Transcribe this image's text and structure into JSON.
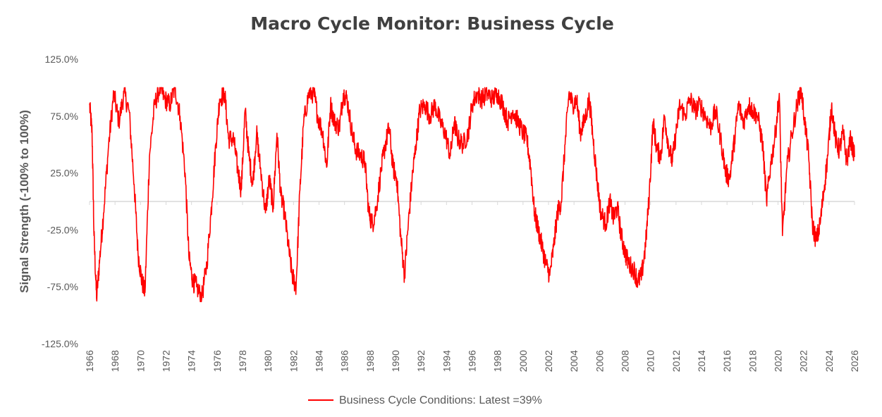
{
  "chart_data": {
    "type": "line",
    "title": "Macro Cycle Monitor: Business Cycle",
    "ylabel": "Signal Strength (-100% to 100%)",
    "xlabel": "",
    "ylim": [
      -125,
      125
    ],
    "xlim": [
      1966,
      2026
    ],
    "y_ticks": [
      "125.0%",
      "75.0%",
      "25.0%",
      "-25.0%",
      "-75.0%",
      "-125.0%"
    ],
    "y_tick_values": [
      125,
      75,
      25,
      -25,
      -75,
      -125
    ],
    "x_ticks": [
      "1966",
      "1968",
      "1970",
      "1972",
      "1974",
      "1976",
      "1978",
      "1980",
      "1982",
      "1984",
      "1986",
      "1988",
      "1990",
      "1992",
      "1994",
      "1996",
      "1998",
      "2000",
      "2002",
      "2004",
      "2006",
      "2008",
      "2010",
      "2012",
      "2014",
      "2016",
      "2018",
      "2020",
      "2022",
      "2024",
      "2026"
    ],
    "x_tick_values": [
      1966,
      1968,
      1970,
      1972,
      1974,
      1976,
      1978,
      1980,
      1982,
      1984,
      1986,
      1988,
      1990,
      1992,
      1994,
      1996,
      1998,
      2000,
      2002,
      2004,
      2006,
      2008,
      2010,
      2012,
      2014,
      2016,
      2018,
      2020,
      2022,
      2024,
      2026
    ],
    "zero_line": true,
    "legend_position": "bottom",
    "series": [
      {
        "name": "Business Cycle Conditions: Latest =39%",
        "color": "#ff0000",
        "anchors": [
          [
            1966.0,
            85
          ],
          [
            1966.2,
            60
          ],
          [
            1966.35,
            -30
          ],
          [
            1966.55,
            -85
          ],
          [
            1966.8,
            -50
          ],
          [
            1967.1,
            -10
          ],
          [
            1967.5,
            50
          ],
          [
            1967.9,
            95
          ],
          [
            1968.3,
            70
          ],
          [
            1968.7,
            95
          ],
          [
            1969.1,
            80
          ],
          [
            1969.5,
            15
          ],
          [
            1969.8,
            -45
          ],
          [
            1970.1,
            -70
          ],
          [
            1970.35,
            -80
          ],
          [
            1970.7,
            40
          ],
          [
            1971.1,
            85
          ],
          [
            1971.5,
            100
          ],
          [
            1971.9,
            90
          ],
          [
            1972.3,
            85
          ],
          [
            1972.7,
            100
          ],
          [
            1973.1,
            75
          ],
          [
            1973.5,
            25
          ],
          [
            1973.8,
            -50
          ],
          [
            1974.1,
            -70
          ],
          [
            1974.4,
            -75
          ],
          [
            1974.8,
            -85
          ],
          [
            1975.2,
            -55
          ],
          [
            1975.6,
            0
          ],
          [
            1975.9,
            50
          ],
          [
            1976.2,
            90
          ],
          [
            1976.6,
            95
          ],
          [
            1976.9,
            55
          ],
          [
            1977.3,
            55
          ],
          [
            1977.6,
            30
          ],
          [
            1977.9,
            10
          ],
          [
            1978.2,
            80
          ],
          [
            1978.5,
            40
          ],
          [
            1978.8,
            15
          ],
          [
            1979.1,
            60
          ],
          [
            1979.4,
            30
          ],
          [
            1979.8,
            -10
          ],
          [
            1980.1,
            20
          ],
          [
            1980.4,
            -5
          ],
          [
            1980.7,
            60
          ],
          [
            1981.0,
            5
          ],
          [
            1981.3,
            -10
          ],
          [
            1981.6,
            -40
          ],
          [
            1981.9,
            -65
          ],
          [
            1982.2,
            -75
          ],
          [
            1982.5,
            10
          ],
          [
            1982.8,
            70
          ],
          [
            1983.2,
            95
          ],
          [
            1983.6,
            95
          ],
          [
            1983.9,
            75
          ],
          [
            1984.3,
            60
          ],
          [
            1984.6,
            30
          ],
          [
            1984.9,
            85
          ],
          [
            1985.2,
            70
          ],
          [
            1985.6,
            65
          ],
          [
            1985.9,
            95
          ],
          [
            1986.2,
            90
          ],
          [
            1986.6,
            60
          ],
          [
            1986.9,
            45
          ],
          [
            1987.3,
            40
          ],
          [
            1987.6,
            35
          ],
          [
            1987.9,
            -10
          ],
          [
            1988.2,
            -20
          ],
          [
            1988.5,
            -5
          ],
          [
            1988.9,
            30
          ],
          [
            1989.2,
            50
          ],
          [
            1989.5,
            65
          ],
          [
            1989.8,
            30
          ],
          [
            1990.1,
            20
          ],
          [
            1990.4,
            -30
          ],
          [
            1990.7,
            -65
          ],
          [
            1991.0,
            -20
          ],
          [
            1991.3,
            20
          ],
          [
            1991.6,
            50
          ],
          [
            1991.9,
            80
          ],
          [
            1992.3,
            85
          ],
          [
            1992.7,
            75
          ],
          [
            1993.1,
            85
          ],
          [
            1993.5,
            70
          ],
          [
            1993.9,
            60
          ],
          [
            1994.3,
            40
          ],
          [
            1994.6,
            70
          ],
          [
            1994.9,
            55
          ],
          [
            1995.3,
            50
          ],
          [
            1995.7,
            60
          ],
          [
            1996.0,
            85
          ],
          [
            1996.4,
            95
          ],
          [
            1996.8,
            90
          ],
          [
            1997.2,
            95
          ],
          [
            1997.6,
            90
          ],
          [
            1998.0,
            95
          ],
          [
            1998.4,
            85
          ],
          [
            1998.8,
            70
          ],
          [
            1999.2,
            80
          ],
          [
            1999.6,
            70
          ],
          [
            2000.0,
            60
          ],
          [
            2000.3,
            55
          ],
          [
            2000.6,
            30
          ],
          [
            2000.9,
            -10
          ],
          [
            2001.2,
            -25
          ],
          [
            2001.5,
            -40
          ],
          [
            2001.8,
            -55
          ],
          [
            2002.1,
            -65
          ],
          [
            2002.4,
            -40
          ],
          [
            2002.7,
            -10
          ],
          [
            2003.0,
            0
          ],
          [
            2003.3,
            50
          ],
          [
            2003.6,
            95
          ],
          [
            2003.9,
            85
          ],
          [
            2004.2,
            90
          ],
          [
            2004.5,
            60
          ],
          [
            2004.8,
            70
          ],
          [
            2005.2,
            90
          ],
          [
            2005.5,
            55
          ],
          [
            2005.8,
            20
          ],
          [
            2006.1,
            -10
          ],
          [
            2006.5,
            -20
          ],
          [
            2006.8,
            0
          ],
          [
            2007.1,
            -15
          ],
          [
            2007.4,
            -5
          ],
          [
            2007.7,
            -30
          ],
          [
            2008.0,
            -45
          ],
          [
            2008.3,
            -55
          ],
          [
            2008.7,
            -60
          ],
          [
            2009.0,
            -70
          ],
          [
            2009.3,
            -65
          ],
          [
            2009.6,
            -40
          ],
          [
            2009.9,
            5
          ],
          [
            2010.2,
            70
          ],
          [
            2010.5,
            45
          ],
          [
            2010.8,
            40
          ],
          [
            2011.1,
            75
          ],
          [
            2011.4,
            50
          ],
          [
            2011.7,
            35
          ],
          [
            2012.0,
            60
          ],
          [
            2012.3,
            85
          ],
          [
            2012.7,
            75
          ],
          [
            2013.1,
            90
          ],
          [
            2013.5,
            80
          ],
          [
            2013.9,
            85
          ],
          [
            2014.3,
            75
          ],
          [
            2014.7,
            65
          ],
          [
            2015.1,
            80
          ],
          [
            2015.5,
            55
          ],
          [
            2015.9,
            25
          ],
          [
            2016.2,
            20
          ],
          [
            2016.6,
            55
          ],
          [
            2016.9,
            85
          ],
          [
            2017.3,
            70
          ],
          [
            2017.7,
            85
          ],
          [
            2018.0,
            80
          ],
          [
            2018.4,
            75
          ],
          [
            2018.8,
            50
          ],
          [
            2019.1,
            0
          ],
          [
            2019.4,
            30
          ],
          [
            2019.8,
            60
          ],
          [
            2020.1,
            95
          ],
          [
            2020.35,
            -30
          ],
          [
            2020.7,
            30
          ],
          [
            2021.1,
            60
          ],
          [
            2021.5,
            85
          ],
          [
            2021.8,
            100
          ],
          [
            2022.1,
            70
          ],
          [
            2022.4,
            40
          ],
          [
            2022.7,
            -20
          ],
          [
            2023.0,
            -35
          ],
          [
            2023.3,
            -20
          ],
          [
            2023.6,
            10
          ],
          [
            2023.9,
            40
          ],
          [
            2024.2,
            85
          ],
          [
            2024.5,
            55
          ],
          [
            2024.8,
            45
          ],
          [
            2025.1,
            60
          ],
          [
            2025.4,
            35
          ],
          [
            2025.7,
            55
          ],
          [
            2026.0,
            39
          ]
        ]
      }
    ]
  }
}
